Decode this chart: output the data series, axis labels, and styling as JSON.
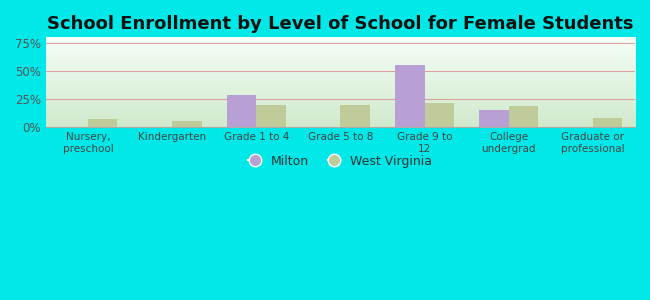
{
  "title": "School Enrollment by Level of School for Female Students",
  "categories": [
    "Nursery,\npreschool",
    "Kindergarten",
    "Grade 1 to 4",
    "Grade 5 to 8",
    "Grade 9 to\n12",
    "College\nundergrad",
    "Graduate or\nprofessional"
  ],
  "milton_values": [
    0,
    0,
    29,
    0,
    55,
    15,
    0
  ],
  "wv_values": [
    7,
    6,
    20,
    20,
    22,
    19,
    8
  ],
  "milton_color": "#b89fd4",
  "wv_color": "#bfcc99",
  "background_color": "#00e8e8",
  "yticks": [
    0,
    25,
    50,
    75
  ],
  "ylim": [
    0,
    80
  ],
  "legend_labels": [
    "Milton",
    "West Virginia"
  ],
  "title_fontsize": 13,
  "bar_width": 0.35,
  "grid_color": "#e0a0a0",
  "grad_top": "#f5fff8",
  "grad_bottom": "#d0eacc"
}
